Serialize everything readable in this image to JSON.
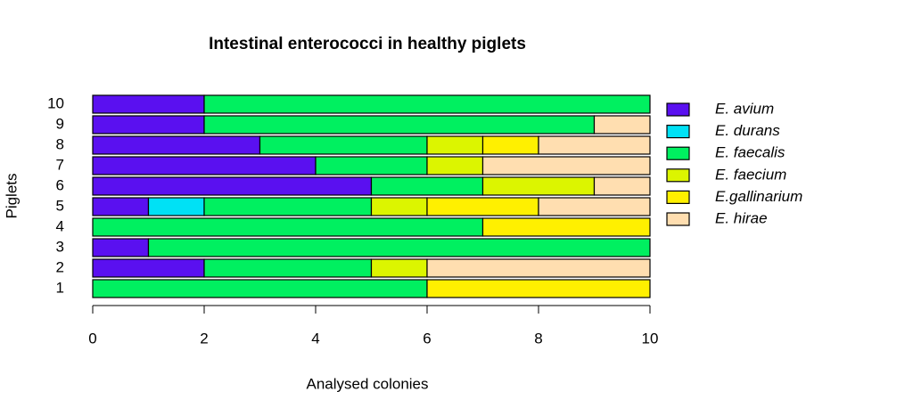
{
  "chart_data": {
    "type": "stacked-bar-horizontal",
    "title": "Intestinal enterococci in healthy piglets",
    "x_label": "Analysed colonies",
    "y_label": "Piglets",
    "categories": [
      "1",
      "2",
      "3",
      "4",
      "5",
      "6",
      "7",
      "8",
      "9",
      "10"
    ],
    "series": [
      {
        "name": "E. avium",
        "color": "#5a10f0",
        "values": [
          0,
          2,
          1,
          0,
          1,
          5,
          4,
          3,
          2,
          2
        ]
      },
      {
        "name": "E. durans",
        "color": "#00e1f5",
        "values": [
          0,
          0,
          0,
          0,
          1,
          0,
          0,
          0,
          0,
          0
        ]
      },
      {
        "name": "E. faecalis",
        "color": "#00f060",
        "values": [
          6,
          3,
          9,
          7,
          3,
          2,
          2,
          3,
          7,
          8
        ]
      },
      {
        "name": "E. faecium",
        "color": "#dcf500",
        "values": [
          0,
          1,
          0,
          0,
          1,
          2,
          1,
          1,
          0,
          0
        ]
      },
      {
        "name": "E.gallinarium",
        "color": "#fff000",
        "values": [
          4,
          0,
          0,
          3,
          2,
          0,
          0,
          1,
          0,
          0
        ]
      },
      {
        "name": "E. hirae",
        "color": "#ffdeb0",
        "values": [
          0,
          4,
          0,
          0,
          2,
          1,
          3,
          2,
          1,
          0
        ]
      }
    ],
    "xlim": [
      0,
      10
    ],
    "xticks": [
      0,
      2,
      4,
      6,
      8,
      10
    ],
    "legend": "right"
  }
}
